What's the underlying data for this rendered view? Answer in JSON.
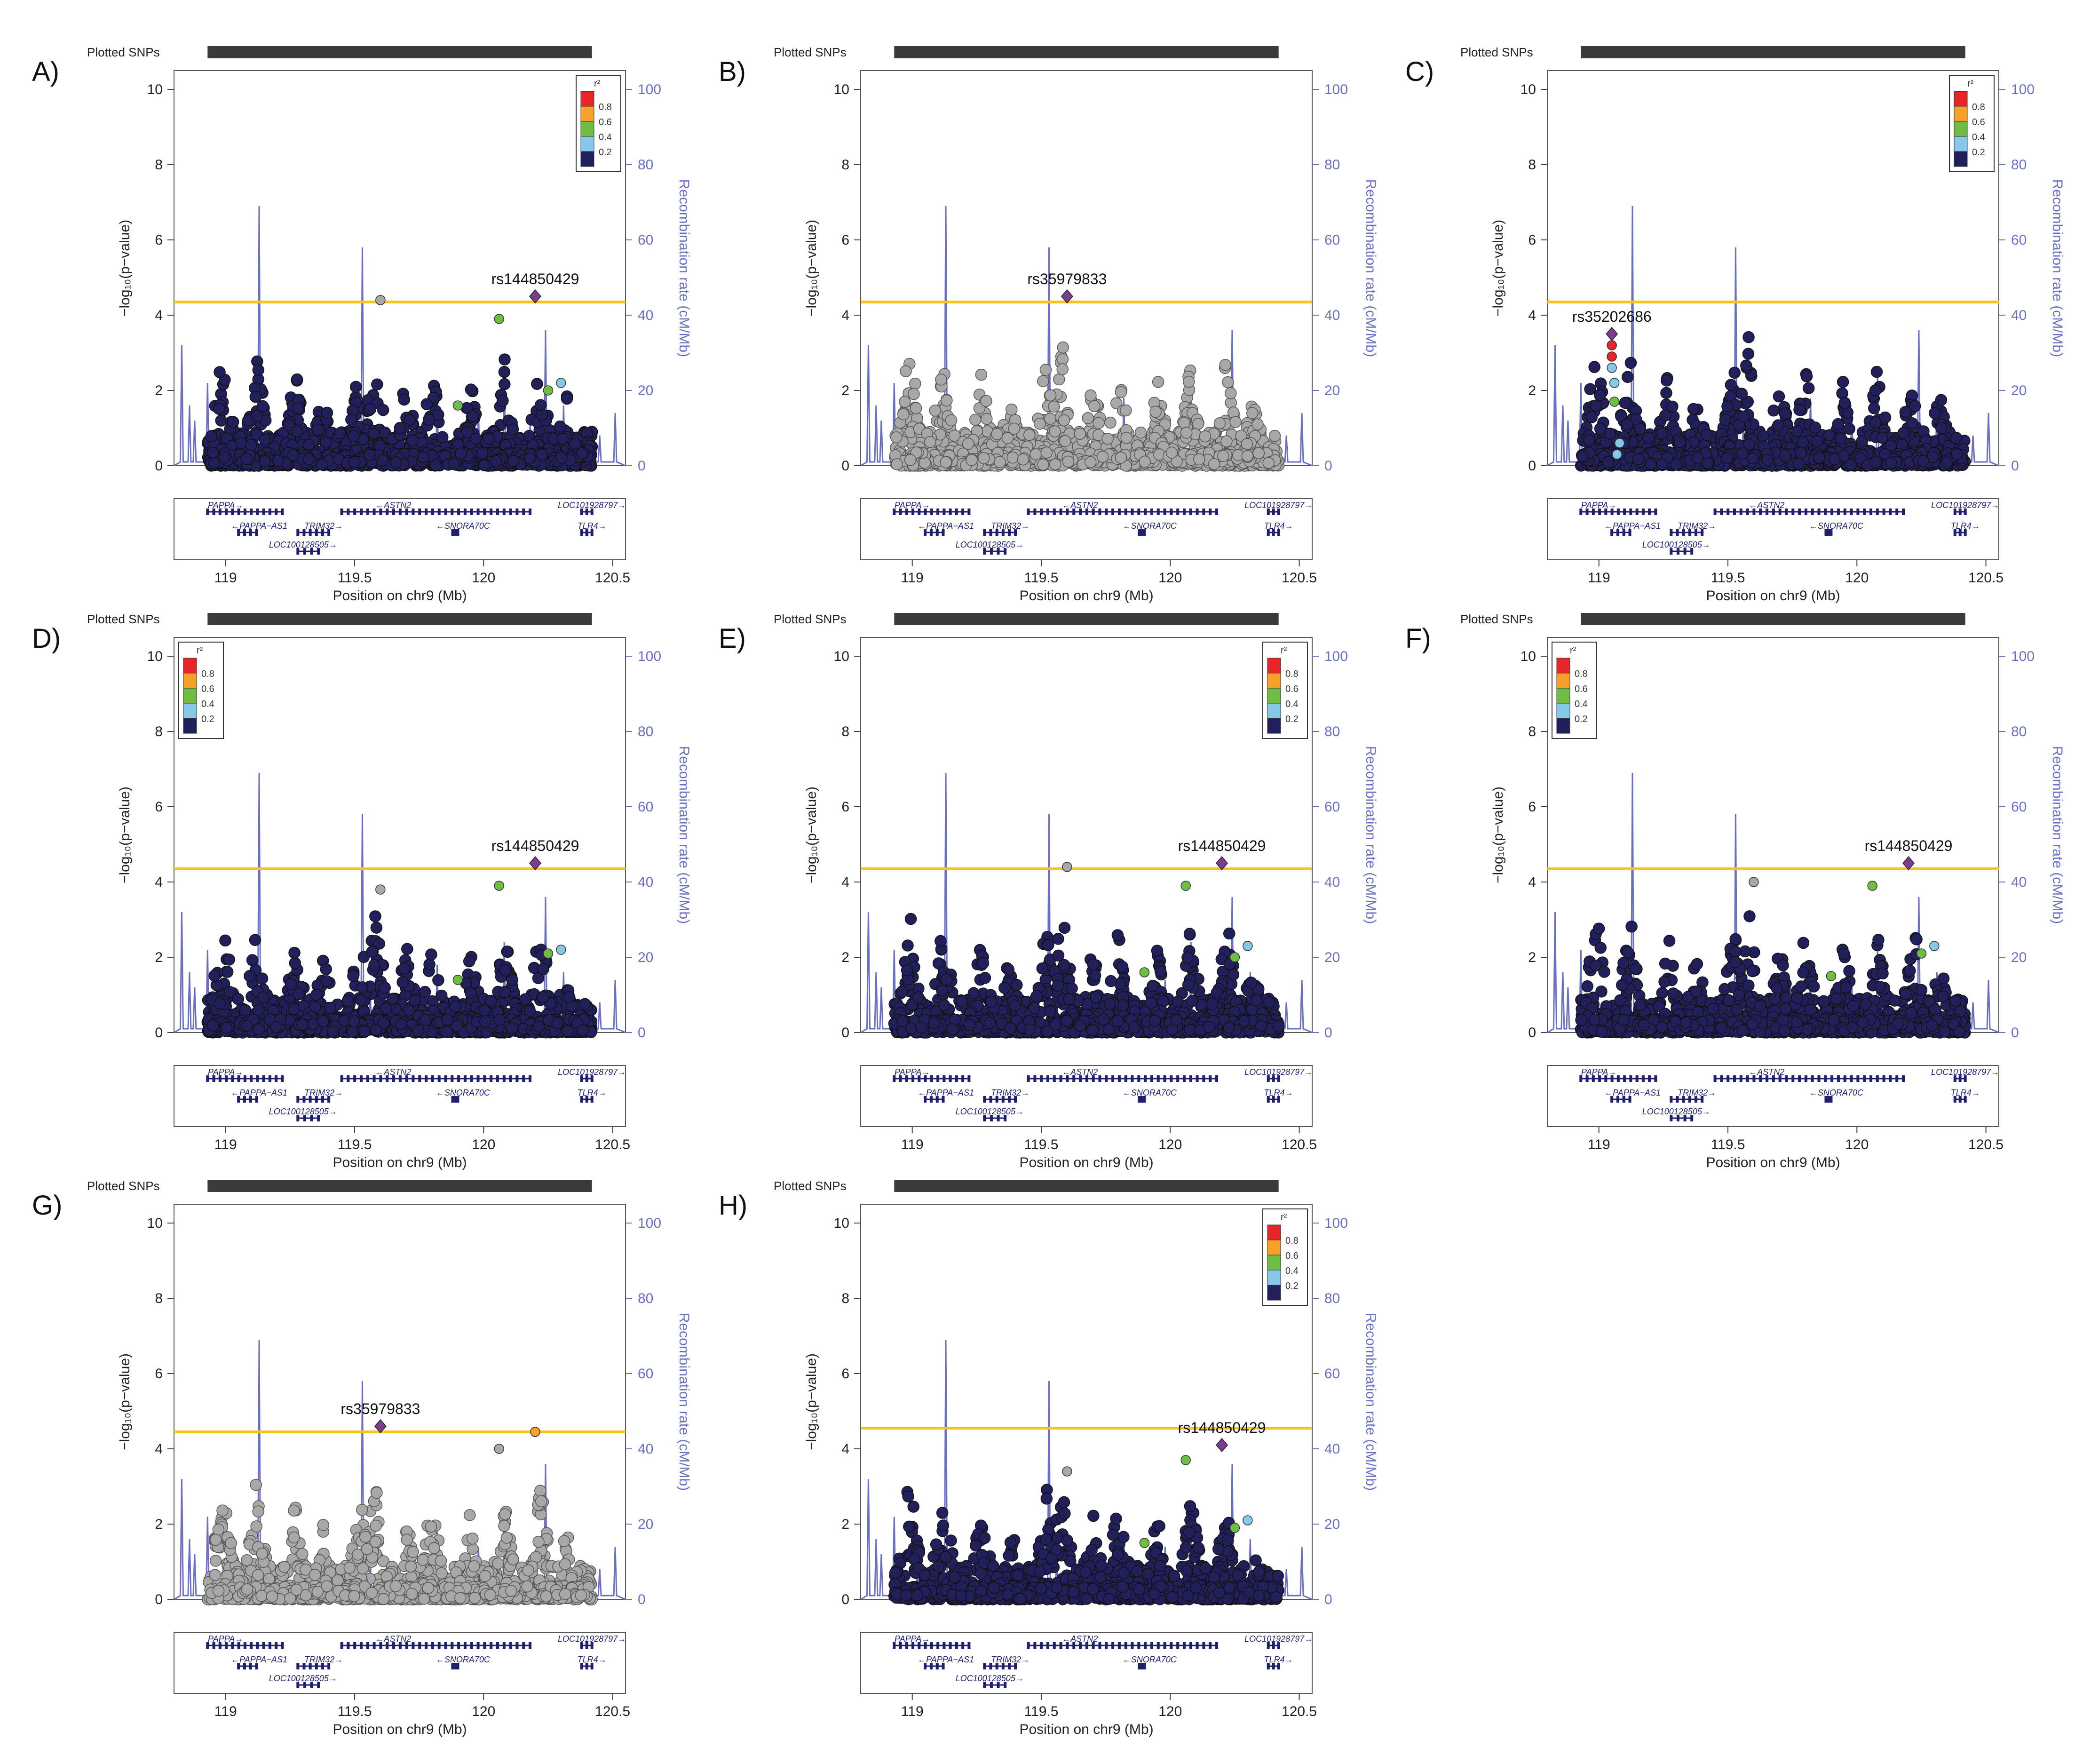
{
  "figure": {
    "title": "LocusZoom regional association plots, chr9 119-120.5 Mb",
    "colors": {
      "threshold": "#f5c518",
      "recomb": "#6a6fc2",
      "ld_none": "#a8a8a8",
      "ld_02": "#22205a",
      "ld_04": "#86c8e8",
      "ld_06": "#6fbe44",
      "ld_08": "#f7a12b",
      "ld_10": "#e8252a",
      "lead": "#7a3d8f",
      "track": "#3b3b3b",
      "gene": "#1f1f6e"
    }
  },
  "chart_data": [
    {
      "panel": "A)",
      "type": "scatter",
      "plotted_snps_label": "Plotted SNPs",
      "xlabel": "Position on chr9 (Mb)",
      "ylabel": "−log₁₀(p−value)",
      "y2label": "Recombination rate (cM/Mb)",
      "xlim": [
        118.8,
        120.55
      ],
      "ylim": [
        0,
        10
      ],
      "y2lim": [
        0,
        100
      ],
      "xticks": [
        "119",
        "119.5",
        "120",
        "120.5"
      ],
      "yticks": [
        "0",
        "2",
        "4",
        "6",
        "8",
        "10"
      ],
      "y2ticks": [
        "0",
        "20",
        "40",
        "60",
        "80",
        "100"
      ],
      "threshold": 4.35,
      "lead_snp": {
        "label": "rs144850429",
        "x": 120.2,
        "y": 4.5
      },
      "highlights": [
        {
          "x": 119.6,
          "y": 4.4,
          "ld": "none"
        },
        {
          "x": 120.06,
          "y": 3.9,
          "ld": "0.6"
        },
        {
          "x": 120.25,
          "y": 2.0,
          "ld": "0.6"
        },
        {
          "x": 120.3,
          "y": 2.2,
          "ld": "0.4"
        },
        {
          "x": 119.9,
          "y": 1.6,
          "ld": "0.6"
        }
      ],
      "scatter_color": "ld_02",
      "legend": {
        "title": "r²",
        "position": "top-right",
        "values": [
          "0.8",
          "0.6",
          "0.4",
          "0.2"
        ]
      },
      "genes_row1": [
        "PAPPA→",
        "←ASTN2",
        "LOC101928797→"
      ],
      "genes_row2": [
        "←PAPPA−AS1",
        "TRIM32→",
        "←SNORA70C",
        "TLR4→"
      ],
      "genes_row3": [
        "LOC100128505→"
      ]
    },
    {
      "panel": "B)",
      "type": "scatter",
      "plotted_snps_label": "Plotted SNPs",
      "xlabel": "Position on chr9 (Mb)",
      "ylabel": "−log₁₀(p−value)",
      "y2label": "Recombination rate (cM/Mb)",
      "xlim": [
        118.8,
        120.55
      ],
      "ylim": [
        0,
        10
      ],
      "y2lim": [
        0,
        100
      ],
      "xticks": [
        "119",
        "119.5",
        "120",
        "120.5"
      ],
      "yticks": [
        "0",
        "2",
        "4",
        "6",
        "8",
        "10"
      ],
      "y2ticks": [
        "0",
        "20",
        "40",
        "60",
        "80",
        "100"
      ],
      "threshold": 4.35,
      "lead_snp": {
        "label": "rs35979833",
        "x": 119.6,
        "y": 4.5
      },
      "highlights": [],
      "scatter_color": "ld_none",
      "legend": null,
      "genes_row1": [
        "PAPPA→",
        "←ASTN2",
        "LOC101928797→"
      ],
      "genes_row2": [
        "←PAPPA−AS1",
        "TRIM32→",
        "←SNORA70C",
        "TLR4→"
      ],
      "genes_row3": [
        "LOC100128505→"
      ]
    },
    {
      "panel": "C)",
      "type": "scatter",
      "plotted_snps_label": "Plotted SNPs",
      "xlabel": "Position on chr9 (Mb)",
      "ylabel": "−log₁₀(p−value)",
      "y2label": "Recombination rate (cM/Mb)",
      "xlim": [
        118.8,
        120.55
      ],
      "ylim": [
        0,
        10
      ],
      "y2lim": [
        0,
        100
      ],
      "xticks": [
        "119",
        "119.5",
        "120",
        "120.5"
      ],
      "yticks": [
        "0",
        "2",
        "4",
        "6",
        "8",
        "10"
      ],
      "y2ticks": [
        "0",
        "20",
        "40",
        "60",
        "80",
        "100"
      ],
      "threshold": 4.35,
      "lead_snp": {
        "label": "rs35202686",
        "x": 119.05,
        "y": 3.5
      },
      "highlights": [
        {
          "x": 119.05,
          "y": 3.2,
          "ld": "1.0"
        },
        {
          "x": 119.05,
          "y": 2.9,
          "ld": "1.0"
        },
        {
          "x": 119.05,
          "y": 2.6,
          "ld": "0.4"
        },
        {
          "x": 119.06,
          "y": 2.2,
          "ld": "0.4"
        },
        {
          "x": 119.06,
          "y": 1.7,
          "ld": "0.6"
        },
        {
          "x": 119.08,
          "y": 0.6,
          "ld": "0.4"
        },
        {
          "x": 119.07,
          "y": 0.3,
          "ld": "0.4"
        }
      ],
      "scatter_color": "ld_02",
      "legend": {
        "title": "r²",
        "position": "top-right",
        "values": [
          "0.8",
          "0.6",
          "0.4",
          "0.2"
        ]
      },
      "genes_row1": [
        "PAPPA→",
        "←ASTN2",
        "LOC101928797→"
      ],
      "genes_row2": [
        "←PAPPA−AS1",
        "TRIM32→",
        "←SNORA70C",
        "TLR4→"
      ],
      "genes_row3": [
        "LOC100128505→"
      ]
    },
    {
      "panel": "D)",
      "type": "scatter",
      "plotted_snps_label": "Plotted SNPs",
      "xlabel": "Position on chr9 (Mb)",
      "ylabel": "−log₁₀(p−value)",
      "y2label": "Recombination rate (cM/Mb)",
      "xlim": [
        118.8,
        120.55
      ],
      "ylim": [
        0,
        10
      ],
      "y2lim": [
        0,
        100
      ],
      "xticks": [
        "119",
        "119.5",
        "120",
        "120.5"
      ],
      "yticks": [
        "0",
        "2",
        "4",
        "6",
        "8",
        "10"
      ],
      "y2ticks": [
        "0",
        "20",
        "40",
        "60",
        "80",
        "100"
      ],
      "threshold": 4.35,
      "lead_snp": {
        "label": "rs144850429",
        "x": 120.2,
        "y": 4.5
      },
      "highlights": [
        {
          "x": 119.6,
          "y": 3.8,
          "ld": "none"
        },
        {
          "x": 120.06,
          "y": 3.9,
          "ld": "0.6"
        },
        {
          "x": 120.25,
          "y": 2.1,
          "ld": "0.6"
        },
        {
          "x": 120.3,
          "y": 2.2,
          "ld": "0.4"
        },
        {
          "x": 119.9,
          "y": 1.4,
          "ld": "0.6"
        }
      ],
      "scatter_color": "ld_02",
      "legend": {
        "title": "r²",
        "position": "top-left",
        "values": [
          "0.8",
          "0.6",
          "0.4",
          "0.2"
        ]
      },
      "genes_row1": [
        "PAPPA→",
        "←ASTN2",
        "LOC101928797→"
      ],
      "genes_row2": [
        "←PAPPA−AS1",
        "TRIM32→",
        "←SNORA70C",
        "TLR4→"
      ],
      "genes_row3": [
        "LOC100128505→"
      ]
    },
    {
      "panel": "E)",
      "type": "scatter",
      "plotted_snps_label": "Plotted SNPs",
      "xlabel": "Position on chr9 (Mb)",
      "ylabel": "−log₁₀(p−value)",
      "y2label": "Recombination rate (cM/Mb)",
      "xlim": [
        118.8,
        120.55
      ],
      "ylim": [
        0,
        10
      ],
      "y2lim": [
        0,
        100
      ],
      "xticks": [
        "119",
        "119.5",
        "120",
        "120.5"
      ],
      "yticks": [
        "0",
        "2",
        "4",
        "6",
        "8",
        "10"
      ],
      "y2ticks": [
        "0",
        "20",
        "40",
        "60",
        "80",
        "100"
      ],
      "threshold": 4.35,
      "lead_snp": {
        "label": "rs144850429",
        "x": 120.2,
        "y": 4.5
      },
      "highlights": [
        {
          "x": 119.6,
          "y": 4.4,
          "ld": "none"
        },
        {
          "x": 120.06,
          "y": 3.9,
          "ld": "0.6"
        },
        {
          "x": 120.25,
          "y": 2.0,
          "ld": "0.6"
        },
        {
          "x": 120.3,
          "y": 2.3,
          "ld": "0.4"
        },
        {
          "x": 119.9,
          "y": 1.6,
          "ld": "0.6"
        }
      ],
      "scatter_color": "ld_02",
      "legend": {
        "title": "r²",
        "position": "top-right",
        "values": [
          "0.8",
          "0.6",
          "0.4",
          "0.2"
        ]
      },
      "genes_row1": [
        "PAPPA→",
        "←ASTN2",
        "LOC101928797→"
      ],
      "genes_row2": [
        "←PAPPA−AS1",
        "TRIM32→",
        "←SNORA70C",
        "TLR4→"
      ],
      "genes_row3": [
        "LOC100128505→"
      ]
    },
    {
      "panel": "F)",
      "type": "scatter",
      "plotted_snps_label": "Plotted SNPs",
      "xlabel": "Position on chr9 (Mb)",
      "ylabel": "−log₁₀(p−value)",
      "y2label": "Recombination rate (cM/Mb)",
      "xlim": [
        118.8,
        120.55
      ],
      "ylim": [
        0,
        10
      ],
      "y2lim": [
        0,
        100
      ],
      "xticks": [
        "119",
        "119.5",
        "120",
        "120.5"
      ],
      "yticks": [
        "0",
        "2",
        "4",
        "6",
        "8",
        "10"
      ],
      "y2ticks": [
        "0",
        "20",
        "40",
        "60",
        "80",
        "100"
      ],
      "threshold": 4.35,
      "lead_snp": {
        "label": "rs144850429",
        "x": 120.2,
        "y": 4.5
      },
      "highlights": [
        {
          "x": 119.6,
          "y": 4.0,
          "ld": "none"
        },
        {
          "x": 120.06,
          "y": 3.9,
          "ld": "0.6"
        },
        {
          "x": 120.25,
          "y": 2.1,
          "ld": "0.6"
        },
        {
          "x": 120.3,
          "y": 2.3,
          "ld": "0.4"
        },
        {
          "x": 119.9,
          "y": 1.5,
          "ld": "0.6"
        }
      ],
      "scatter_color": "ld_02",
      "legend": {
        "title": "r²",
        "position": "top-left",
        "values": [
          "0.8",
          "0.6",
          "0.4",
          "0.2"
        ]
      },
      "genes_row1": [
        "PAPPA→",
        "←ASTN2",
        "LOC101928797→"
      ],
      "genes_row2": [
        "←PAPPA−AS1",
        "TRIM32→",
        "←SNORA70C",
        "TLR4→"
      ],
      "genes_row3": [
        "LOC100128505→"
      ]
    },
    {
      "panel": "G)",
      "type": "scatter",
      "plotted_snps_label": "Plotted SNPs",
      "xlabel": "Position on chr9 (Mb)",
      "ylabel": "−log₁₀(p−value)",
      "y2label": "Recombination rate (cM/Mb)",
      "xlim": [
        118.8,
        120.55
      ],
      "ylim": [
        0,
        10
      ],
      "y2lim": [
        0,
        100
      ],
      "xticks": [
        "119",
        "119.5",
        "120",
        "120.5"
      ],
      "yticks": [
        "0",
        "2",
        "4",
        "6",
        "8",
        "10"
      ],
      "y2ticks": [
        "0",
        "20",
        "40",
        "60",
        "80",
        "100"
      ],
      "threshold": 4.45,
      "lead_snp": {
        "label": "rs35979833",
        "x": 119.6,
        "y": 4.6
      },
      "highlights": [
        {
          "x": 120.2,
          "y": 4.45,
          "ld": "0.8"
        },
        {
          "x": 120.06,
          "y": 4.0,
          "ld": "none"
        }
      ],
      "scatter_color": "ld_none",
      "legend": null,
      "genes_row1": [
        "PAPPA→",
        "←ASTN2",
        "LOC101928797→"
      ],
      "genes_row2": [
        "←PAPPA−AS1",
        "TRIM32→",
        "←SNORA70C",
        "TLR4→"
      ],
      "genes_row3": [
        "LOC100128505→"
      ]
    },
    {
      "panel": "H)",
      "type": "scatter",
      "plotted_snps_label": "Plotted SNPs",
      "xlabel": "Position on chr9 (Mb)",
      "ylabel": "−log₁₀(p−value)",
      "y2label": "Recombination rate (cM/Mb)",
      "xlim": [
        118.8,
        120.55
      ],
      "ylim": [
        0,
        10
      ],
      "y2lim": [
        0,
        100
      ],
      "xticks": [
        "119",
        "119.5",
        "120",
        "120.5"
      ],
      "yticks": [
        "0",
        "2",
        "4",
        "6",
        "8",
        "10"
      ],
      "y2ticks": [
        "0",
        "20",
        "40",
        "60",
        "80",
        "100"
      ],
      "threshold": 4.55,
      "lead_snp": {
        "label": "rs144850429",
        "x": 120.2,
        "y": 4.1
      },
      "highlights": [
        {
          "x": 120.06,
          "y": 3.7,
          "ld": "0.6"
        },
        {
          "x": 120.25,
          "y": 1.9,
          "ld": "0.6"
        },
        {
          "x": 120.3,
          "y": 2.1,
          "ld": "0.4"
        },
        {
          "x": 119.9,
          "y": 1.5,
          "ld": "0.6"
        },
        {
          "x": 119.6,
          "y": 3.4,
          "ld": "none"
        }
      ],
      "scatter_color": "ld_02",
      "legend": {
        "title": "r²",
        "position": "top-right",
        "values": [
          "0.8",
          "0.6",
          "0.4",
          "0.2"
        ]
      },
      "genes_row1": [
        "PAPPA→",
        "←ASTN2",
        "LOC101928797→"
      ],
      "genes_row2": [
        "←PAPPA−AS1",
        "TRIM32→",
        "←SNORA70C",
        "TLR4→"
      ],
      "genes_row3": [
        "LOC100128505→"
      ]
    }
  ],
  "recombination_peaks": [
    {
      "x": 118.83,
      "r": 32
    },
    {
      "x": 118.86,
      "r": 16
    },
    {
      "x": 118.88,
      "r": 12
    },
    {
      "x": 118.93,
      "r": 22
    },
    {
      "x": 119.02,
      "r": 8
    },
    {
      "x": 119.13,
      "r": 69
    },
    {
      "x": 119.3,
      "r": 10
    },
    {
      "x": 119.53,
      "r": 58
    },
    {
      "x": 119.56,
      "r": 12
    },
    {
      "x": 119.82,
      "r": 18
    },
    {
      "x": 119.98,
      "r": 14
    },
    {
      "x": 120.08,
      "r": 24
    },
    {
      "x": 120.18,
      "r": 11
    },
    {
      "x": 120.24,
      "r": 36
    },
    {
      "x": 120.31,
      "r": 16
    },
    {
      "x": 120.37,
      "r": 9
    },
    {
      "x": 120.45,
      "r": 8
    },
    {
      "x": 120.51,
      "r": 14
    }
  ],
  "peak_regions": [
    {
      "x": 118.99,
      "h": 3.4
    },
    {
      "x": 119.12,
      "h": 3.2
    },
    {
      "x": 119.27,
      "h": 2.6
    },
    {
      "x": 119.38,
      "h": 2.2
    },
    {
      "x": 119.52,
      "h": 3.0
    },
    {
      "x": 119.58,
      "h": 3.6
    },
    {
      "x": 119.7,
      "h": 2.4
    },
    {
      "x": 119.8,
      "h": 2.8
    },
    {
      "x": 119.95,
      "h": 2.5
    },
    {
      "x": 120.08,
      "h": 2.9
    },
    {
      "x": 120.22,
      "h": 3.1
    },
    {
      "x": 120.32,
      "h": 2.0
    }
  ]
}
